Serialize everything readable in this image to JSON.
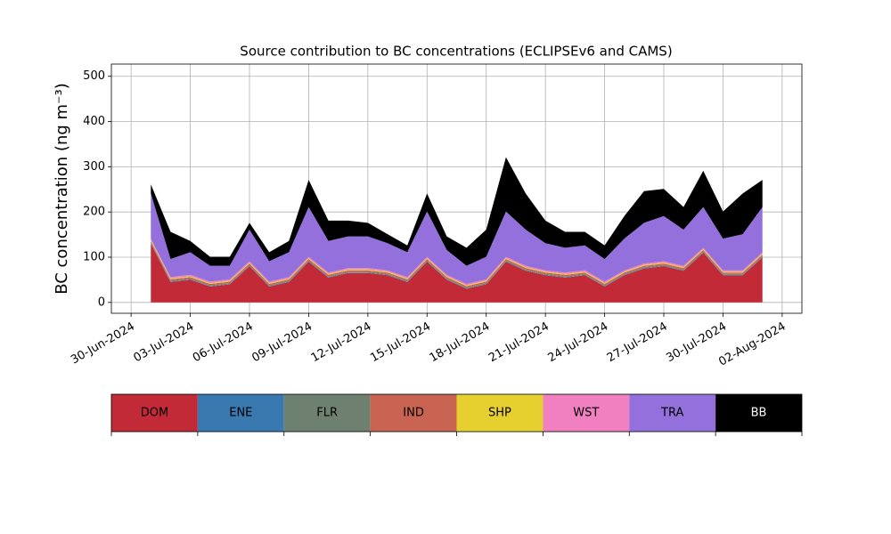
{
  "chart_data": {
    "type": "stacked_area",
    "title": "Source contribution to BC concentrations (ECLIPSEv6 and CAMS)",
    "y_label": "BC concentration (ng m⁻³)",
    "x": [
      "2024-07-01",
      "2024-07-02",
      "2024-07-03",
      "2024-07-04",
      "2024-07-05",
      "2024-07-06",
      "2024-07-07",
      "2024-07-08",
      "2024-07-09",
      "2024-07-10",
      "2024-07-11",
      "2024-07-12",
      "2024-07-13",
      "2024-07-14",
      "2024-07-15",
      "2024-07-16",
      "2024-07-17",
      "2024-07-18",
      "2024-07-19",
      "2024-07-20",
      "2024-07-21",
      "2024-07-22",
      "2024-07-23",
      "2024-07-24",
      "2024-07-25",
      "2024-07-26",
      "2024-07-27",
      "2024-07-28",
      "2024-07-29",
      "2024-07-30",
      "2024-07-31",
      "2024-08-01"
    ],
    "series": [
      {
        "name": "DOM",
        "color": "#c22a38",
        "values": [
          130,
          45,
          50,
          35,
          40,
          80,
          35,
          45,
          90,
          55,
          65,
          65,
          60,
          45,
          90,
          50,
          30,
          40,
          90,
          70,
          60,
          55,
          60,
          35,
          60,
          75,
          80,
          70,
          110,
          60,
          60,
          100
        ]
      },
      {
        "name": "ENE",
        "color": "#3a78b0",
        "values": [
          1,
          1,
          1,
          1,
          1,
          1,
          1,
          1,
          1,
          1,
          1,
          1,
          1,
          1,
          1,
          1,
          1,
          1,
          1,
          1,
          1,
          1,
          1,
          1,
          1,
          1,
          1,
          1,
          1,
          1,
          1,
          1
        ]
      },
      {
        "name": "FLR",
        "color": "#6e8070",
        "values": [
          2,
          2,
          2,
          2,
          2,
          2,
          2,
          2,
          2,
          2,
          2,
          2,
          2,
          2,
          2,
          2,
          2,
          2,
          2,
          2,
          2,
          2,
          2,
          2,
          2,
          2,
          2,
          2,
          2,
          2,
          2,
          2
        ]
      },
      {
        "name": "IND",
        "color": "#c96452",
        "values": [
          3,
          3,
          3,
          3,
          3,
          3,
          3,
          3,
          3,
          3,
          3,
          3,
          3,
          3,
          3,
          3,
          3,
          3,
          3,
          3,
          3,
          3,
          3,
          3,
          3,
          3,
          3,
          3,
          3,
          3,
          3,
          3
        ]
      },
      {
        "name": "SHP",
        "color": "#e6d030",
        "values": [
          2,
          2,
          2,
          2,
          2,
          2,
          2,
          2,
          2,
          2,
          2,
          2,
          2,
          2,
          2,
          2,
          2,
          2,
          2,
          2,
          2,
          2,
          2,
          2,
          2,
          2,
          2,
          2,
          2,
          2,
          2,
          2
        ]
      },
      {
        "name": "WST",
        "color": "#f080c0",
        "values": [
          3,
          3,
          3,
          3,
          3,
          3,
          3,
          3,
          3,
          3,
          3,
          3,
          3,
          3,
          3,
          3,
          3,
          3,
          3,
          3,
          3,
          3,
          3,
          3,
          3,
          3,
          3,
          3,
          3,
          3,
          3,
          3
        ]
      },
      {
        "name": "TRA",
        "color": "#9370db",
        "values": [
          100,
          40,
          50,
          35,
          30,
          70,
          45,
          55,
          110,
          70,
          70,
          70,
          60,
          55,
          100,
          55,
          40,
          50,
          100,
          80,
          60,
          55,
          55,
          50,
          70,
          90,
          100,
          80,
          90,
          70,
          80,
          100
        ]
      },
      {
        "name": "BB",
        "color": "#000000",
        "values": [
          20,
          60,
          25,
          20,
          20,
          15,
          20,
          25,
          60,
          45,
          35,
          30,
          20,
          15,
          40,
          30,
          40,
          60,
          120,
          80,
          50,
          35,
          30,
          30,
          50,
          70,
          60,
          50,
          80,
          60,
          90,
          60
        ]
      }
    ],
    "xlim": [
      "2024-06-29",
      "2024-08-03"
    ],
    "xticks": [
      {
        "value": "2024-06-30",
        "label": "30-Jun-2024"
      },
      {
        "value": "2024-07-03",
        "label": "03-Jul-2024"
      },
      {
        "value": "2024-07-06",
        "label": "06-Jul-2024"
      },
      {
        "value": "2024-07-09",
        "label": "09-Jul-2024"
      },
      {
        "value": "2024-07-12",
        "label": "12-Jul-2024"
      },
      {
        "value": "2024-07-15",
        "label": "15-Jul-2024"
      },
      {
        "value": "2024-07-18",
        "label": "18-Jul-2024"
      },
      {
        "value": "2024-07-21",
        "label": "21-Jul-2024"
      },
      {
        "value": "2024-07-24",
        "label": "24-Jul-2024"
      },
      {
        "value": "2024-07-27",
        "label": "27-Jul-2024"
      },
      {
        "value": "2024-07-30",
        "label": "30-Jul-2024"
      },
      {
        "value": "2024-08-02",
        "label": "02-Aug-2024"
      }
    ],
    "ylim": [
      -24,
      527
    ],
    "yticks": [
      0,
      100,
      200,
      300,
      400,
      500
    ],
    "grid": true,
    "legend": "below"
  }
}
